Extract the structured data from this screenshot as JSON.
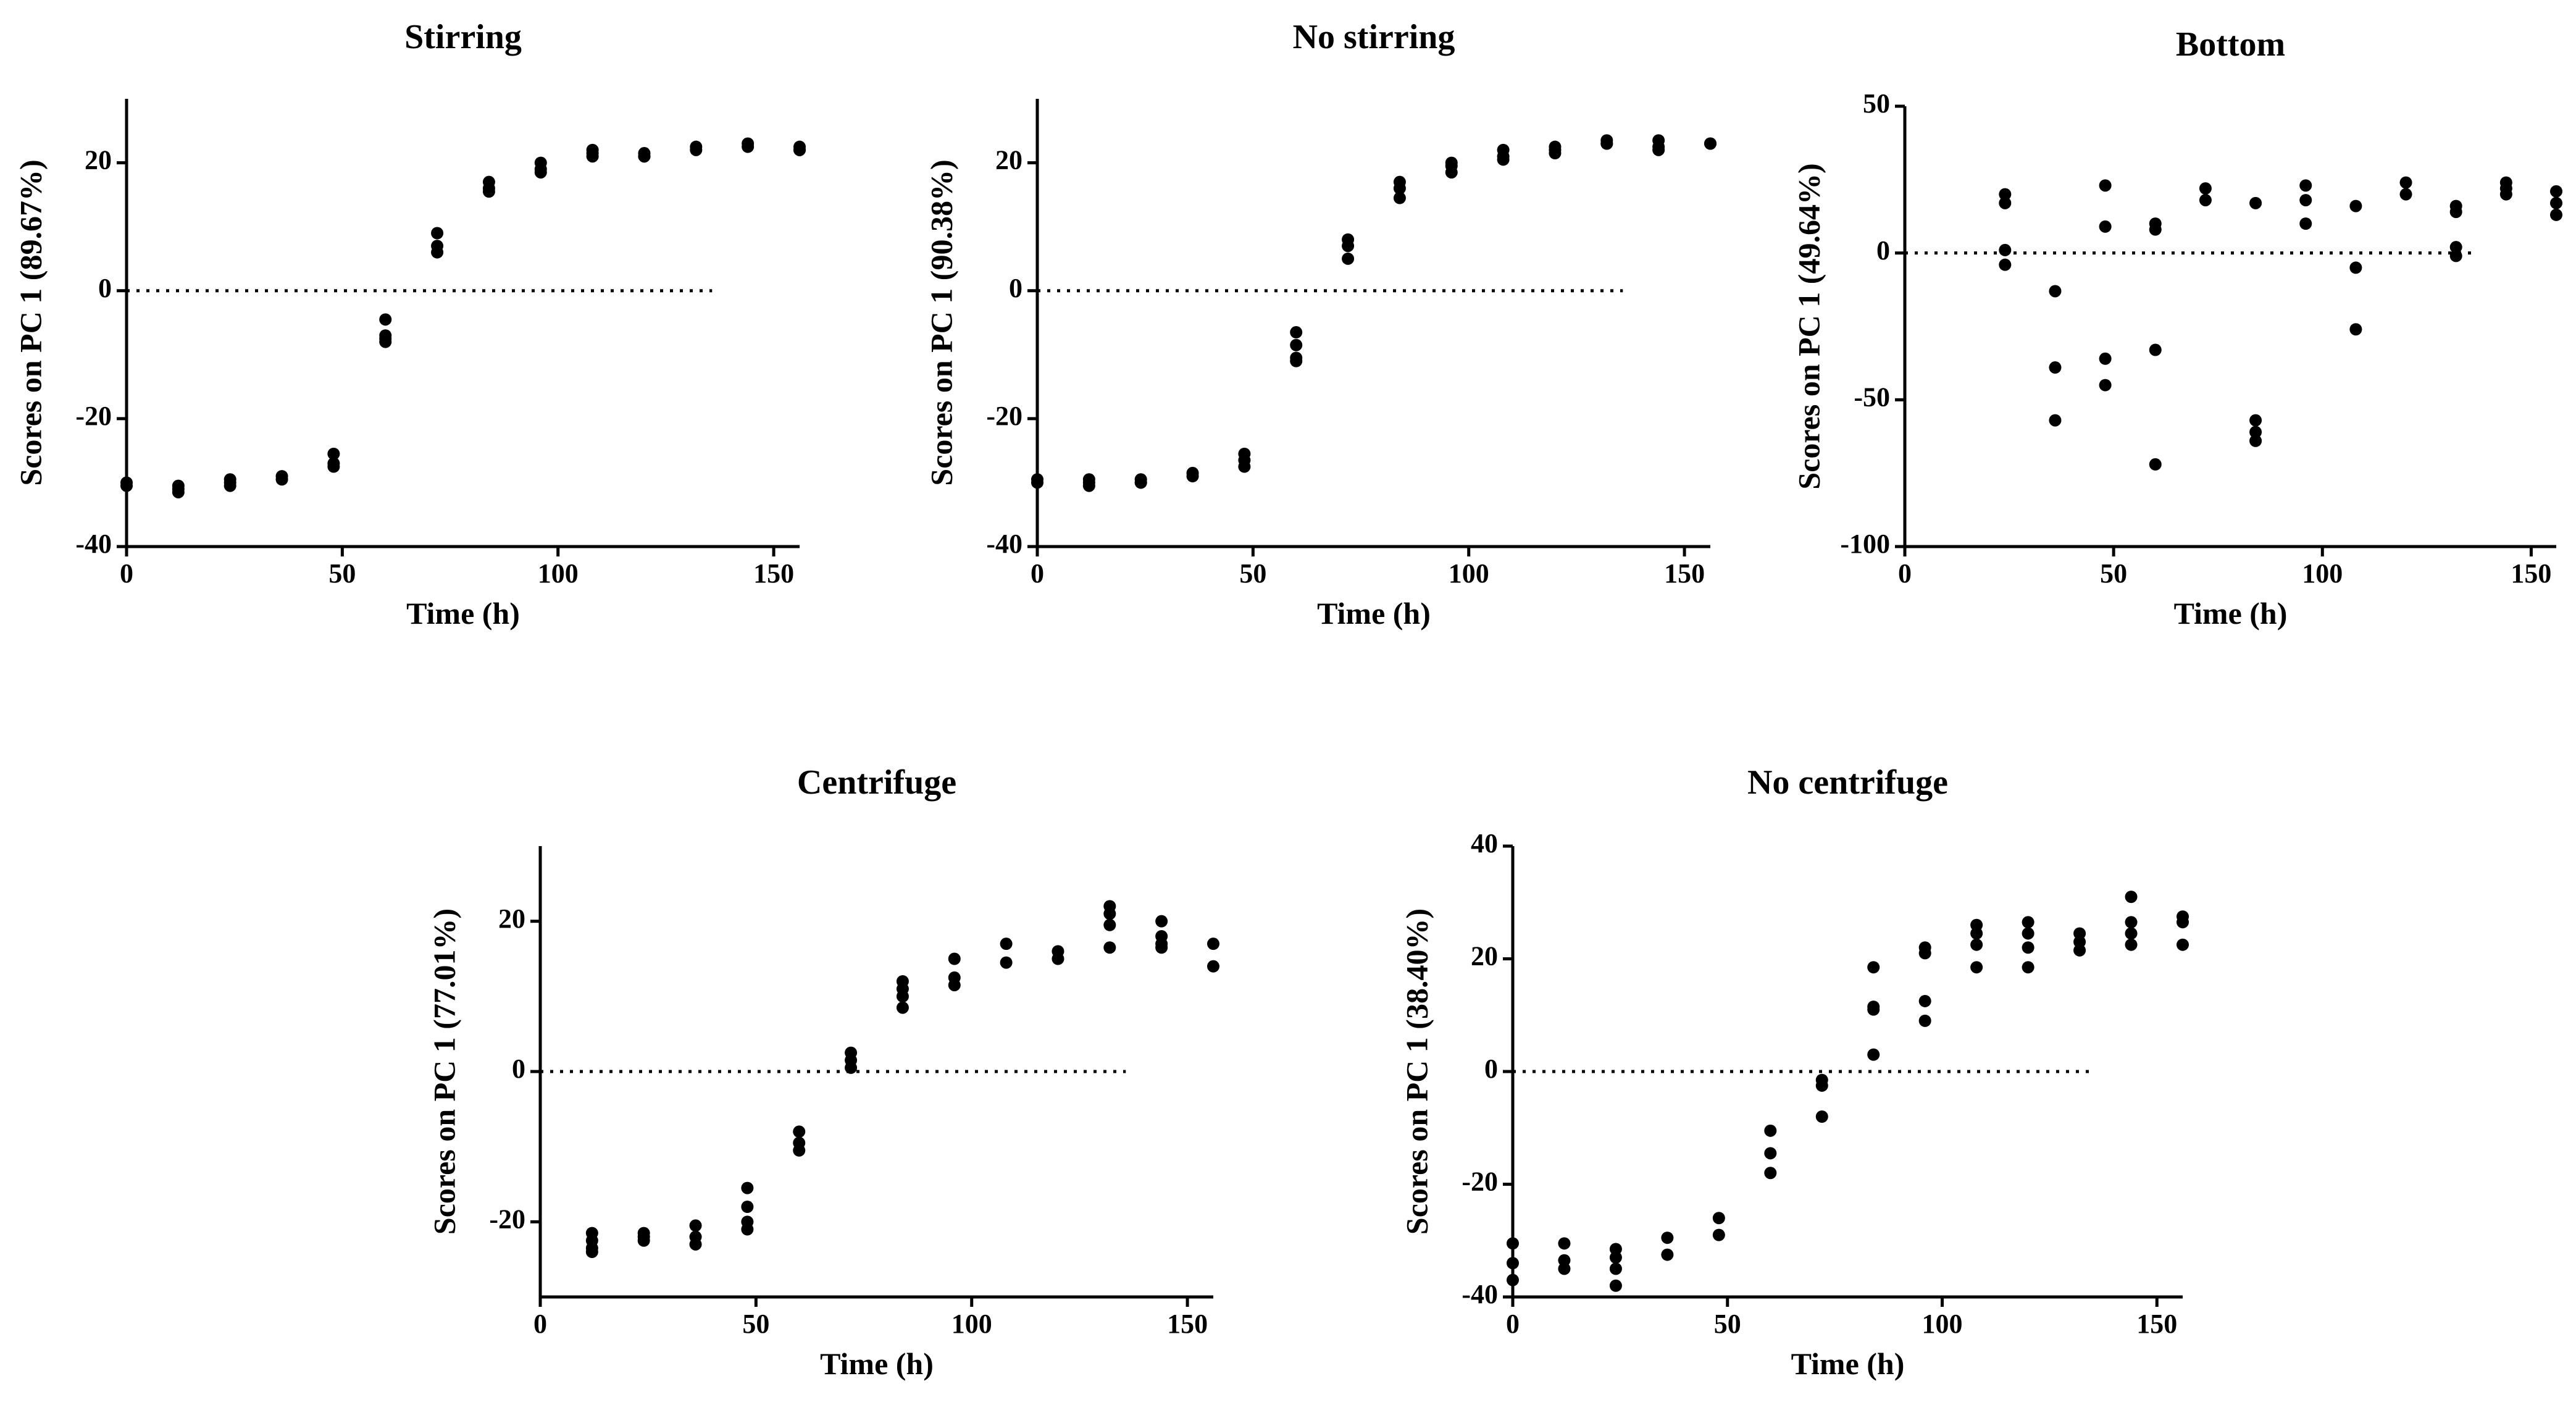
{
  "chart_data": [
    {
      "type": "scatter",
      "title": "Stirring",
      "xlabel": "Time (h)",
      "ylabel": "Scores on PC 1 (89.67%)",
      "xlim": [
        0,
        156
      ],
      "ylim": [
        -40,
        30
      ],
      "xticks": [
        0,
        50,
        100,
        150
      ],
      "yticks": [
        -40,
        -20,
        0,
        20
      ],
      "reference_line": 0,
      "points": [
        [
          0,
          -30
        ],
        [
          0,
          -30.5
        ],
        [
          12,
          -30.5
        ],
        [
          12,
          -31
        ],
        [
          12,
          -31.5
        ],
        [
          24,
          -29.5
        ],
        [
          24,
          -30
        ],
        [
          24,
          -30.5
        ],
        [
          36,
          -29
        ],
        [
          36,
          -29.5
        ],
        [
          48,
          -25.5
        ],
        [
          48,
          -27
        ],
        [
          48,
          -27.5
        ],
        [
          60,
          -4.5
        ],
        [
          60,
          -7
        ],
        [
          60,
          -7.5
        ],
        [
          60,
          -8
        ],
        [
          72,
          9
        ],
        [
          72,
          7
        ],
        [
          72,
          6
        ],
        [
          84,
          17
        ],
        [
          84,
          16
        ],
        [
          84,
          15.5
        ],
        [
          96,
          20
        ],
        [
          96,
          19
        ],
        [
          96,
          18.5
        ],
        [
          108,
          22
        ],
        [
          108,
          21.5
        ],
        [
          108,
          21
        ],
        [
          120,
          21.5
        ],
        [
          120,
          21
        ],
        [
          120,
          21
        ],
        [
          132,
          22.5
        ],
        [
          132,
          22
        ],
        [
          144,
          23
        ],
        [
          144,
          22.5
        ],
        [
          156,
          22.5
        ],
        [
          156,
          22
        ],
        [
          156,
          22
        ]
      ]
    },
    {
      "type": "scatter",
      "title": "No stirring",
      "xlabel": "Time (h)",
      "ylabel": "Scores on PC 1 (90.38%)",
      "xlim": [
        0,
        156
      ],
      "ylim": [
        -40,
        30
      ],
      "xticks": [
        0,
        50,
        100,
        150
      ],
      "yticks": [
        -40,
        -20,
        0,
        20
      ],
      "reference_line": 0,
      "points": [
        [
          0,
          -29.5
        ],
        [
          0,
          -30
        ],
        [
          12,
          -29.5
        ],
        [
          12,
          -30
        ],
        [
          12,
          -30.5
        ],
        [
          24,
          -29.5
        ],
        [
          24,
          -30
        ],
        [
          24,
          -30
        ],
        [
          36,
          -28.5
        ],
        [
          36,
          -29
        ],
        [
          48,
          -25.5
        ],
        [
          48,
          -26.5
        ],
        [
          48,
          -27.5
        ],
        [
          60,
          -6.5
        ],
        [
          60,
          -8.5
        ],
        [
          60,
          -10.5
        ],
        [
          60,
          -11
        ],
        [
          72,
          8
        ],
        [
          72,
          7
        ],
        [
          72,
          5
        ],
        [
          84,
          17
        ],
        [
          84,
          16
        ],
        [
          84,
          14.5
        ],
        [
          96,
          20
        ],
        [
          96,
          19.5
        ],
        [
          96,
          18.5
        ],
        [
          108,
          22
        ],
        [
          108,
          21
        ],
        [
          108,
          20.5
        ],
        [
          120,
          22.5
        ],
        [
          120,
          22
        ],
        [
          120,
          21.5
        ],
        [
          132,
          23.5
        ],
        [
          132,
          23
        ],
        [
          132,
          23
        ],
        [
          144,
          23.5
        ],
        [
          144,
          22.5
        ],
        [
          144,
          22
        ],
        [
          156,
          23
        ],
        [
          156,
          23
        ]
      ]
    },
    {
      "type": "scatter",
      "title": "Bottom",
      "xlabel": "Time (h)",
      "ylabel": "Scores on PC 1 (49.64%)",
      "xlim": [
        0,
        156
      ],
      "ylim": [
        -100,
        50
      ],
      "xticks": [
        0,
        50,
        100,
        150
      ],
      "yticks": [
        -100,
        -50,
        0,
        50
      ],
      "reference_line": 0,
      "points": [
        [
          24,
          20
        ],
        [
          24,
          17
        ],
        [
          24,
          1
        ],
        [
          24,
          -4
        ],
        [
          36,
          -13
        ],
        [
          36,
          -39
        ],
        [
          36,
          -57
        ],
        [
          48,
          23
        ],
        [
          48,
          9
        ],
        [
          48,
          -36
        ],
        [
          48,
          -45
        ],
        [
          60,
          10
        ],
        [
          60,
          8
        ],
        [
          60,
          -33
        ],
        [
          60,
          -72
        ],
        [
          72,
          22
        ],
        [
          72,
          18
        ],
        [
          84,
          17
        ],
        [
          84,
          -57
        ],
        [
          84,
          -61
        ],
        [
          84,
          -64
        ],
        [
          96,
          23
        ],
        [
          96,
          18
        ],
        [
          96,
          10
        ],
        [
          108,
          16
        ],
        [
          108,
          -5
        ],
        [
          108,
          -26
        ],
        [
          120,
          24
        ],
        [
          120,
          20
        ],
        [
          132,
          16
        ],
        [
          132,
          14
        ],
        [
          132,
          2
        ],
        [
          132,
          -1
        ],
        [
          144,
          24
        ],
        [
          144,
          22
        ],
        [
          144,
          20
        ],
        [
          156,
          21
        ],
        [
          156,
          17
        ],
        [
          156,
          13
        ]
      ]
    },
    {
      "type": "scatter",
      "title": "Centrifuge",
      "xlabel": "Time (h)",
      "ylabel": "Scores on PC 1 (77.01%)",
      "xlim": [
        0,
        156
      ],
      "ylim": [
        -30,
        30
      ],
      "xticks": [
        0,
        50,
        100,
        150
      ],
      "yticks": [
        -20,
        0,
        20
      ],
      "reference_line": 0,
      "points": [
        [
          12,
          -21.5
        ],
        [
          12,
          -22.5
        ],
        [
          12,
          -23.5
        ],
        [
          12,
          -24
        ],
        [
          24,
          -21.5
        ],
        [
          24,
          -22
        ],
        [
          24,
          -22.5
        ],
        [
          36,
          -20.5
        ],
        [
          36,
          -22
        ],
        [
          36,
          -23
        ],
        [
          48,
          -15.5
        ],
        [
          48,
          -18
        ],
        [
          48,
          -20
        ],
        [
          48,
          -21
        ],
        [
          60,
          -8
        ],
        [
          60,
          -9.5
        ],
        [
          60,
          -10.5
        ],
        [
          72,
          2.5
        ],
        [
          72,
          1.5
        ],
        [
          72,
          0.5
        ],
        [
          84,
          12
        ],
        [
          84,
          11
        ],
        [
          84,
          10
        ],
        [
          84,
          8.5
        ],
        [
          96,
          15
        ],
        [
          96,
          12.5
        ],
        [
          96,
          11.5
        ],
        [
          108,
          17
        ],
        [
          108,
          14.5
        ],
        [
          120,
          16
        ],
        [
          120,
          15
        ],
        [
          132,
          22
        ],
        [
          132,
          21
        ],
        [
          132,
          19.5
        ],
        [
          132,
          16.5
        ],
        [
          144,
          20
        ],
        [
          144,
          18
        ],
        [
          144,
          17
        ],
        [
          144,
          16.5
        ],
        [
          156,
          17
        ],
        [
          156,
          14
        ]
      ]
    },
    {
      "type": "scatter",
      "title": "No centrifuge",
      "xlabel": "Time (h)",
      "ylabel": "Scores on PC 1 (38.40%)",
      "xlim": [
        0,
        156
      ],
      "ylim": [
        -40,
        40
      ],
      "xticks": [
        0,
        50,
        100,
        150
      ],
      "yticks": [
        -40,
        -20,
        0,
        20,
        40
      ],
      "reference_line": 0,
      "points": [
        [
          0,
          -30.5
        ],
        [
          0,
          -34
        ],
        [
          0,
          -37
        ],
        [
          12,
          -30.5
        ],
        [
          12,
          -33.5
        ],
        [
          12,
          -35
        ],
        [
          24,
          -31.5
        ],
        [
          24,
          -33
        ],
        [
          24,
          -35
        ],
        [
          24,
          -38
        ],
        [
          36,
          -29.5
        ],
        [
          36,
          -32.5
        ],
        [
          48,
          -26
        ],
        [
          48,
          -29
        ],
        [
          60,
          -10.5
        ],
        [
          60,
          -14.5
        ],
        [
          60,
          -18
        ],
        [
          72,
          -1.5
        ],
        [
          72,
          -2.5
        ],
        [
          72,
          -8
        ],
        [
          84,
          18.5
        ],
        [
          84,
          11.5
        ],
        [
          84,
          11
        ],
        [
          84,
          3
        ],
        [
          96,
          22
        ],
        [
          96,
          21
        ],
        [
          96,
          12.5
        ],
        [
          96,
          9
        ],
        [
          108,
          26
        ],
        [
          108,
          24.5
        ],
        [
          108,
          22.5
        ],
        [
          108,
          18.5
        ],
        [
          120,
          26.5
        ],
        [
          120,
          24.5
        ],
        [
          120,
          22
        ],
        [
          120,
          18.5
        ],
        [
          132,
          24.5
        ],
        [
          132,
          23
        ],
        [
          132,
          21.5
        ],
        [
          144,
          31
        ],
        [
          144,
          26.5
        ],
        [
          144,
          24.5
        ],
        [
          144,
          22.5
        ],
        [
          156,
          27.5
        ],
        [
          156,
          26.5
        ],
        [
          156,
          22.5
        ]
      ]
    }
  ]
}
